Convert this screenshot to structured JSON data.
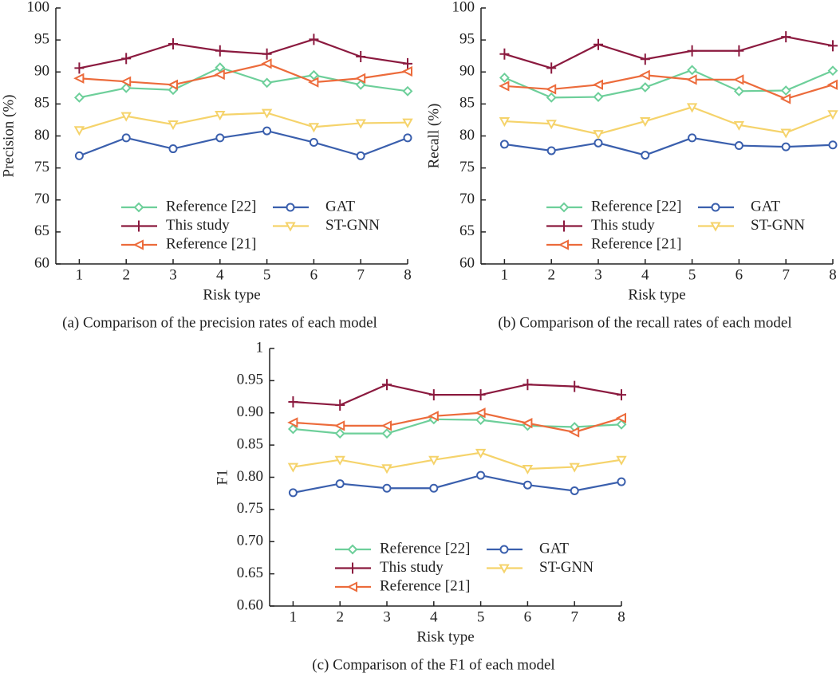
{
  "chart_data": [
    {
      "type": "line",
      "xlabel": "Risk type",
      "ylabel": "Precision (%)",
      "caption": "(a) Comparison of the precision rates of each model",
      "x": [
        1,
        2,
        3,
        4,
        5,
        6,
        7,
        8
      ],
      "xlim": [
        0.5,
        8
      ],
      "xticks": [
        1,
        2,
        3,
        4,
        5,
        6,
        7,
        8
      ],
      "ylim": [
        60,
        100
      ],
      "yticks": [
        60,
        65,
        70,
        75,
        80,
        85,
        90,
        95,
        100
      ],
      "legend": "lower left",
      "series": [
        {
          "name": "Reference [22]",
          "color": "#6dcf9a",
          "marker": "diamond",
          "values": [
            86,
            87.5,
            87.2,
            90.7,
            88.3,
            89.5,
            88,
            87
          ]
        },
        {
          "name": "This study",
          "color": "#8b1a3f",
          "marker": "plus",
          "values": [
            90.6,
            92.1,
            94.4,
            93.3,
            92.8,
            95.1,
            92.4,
            91.3
          ]
        },
        {
          "name": "Reference [21]",
          "color": "#ec6b3b",
          "marker": "triangle-left",
          "values": [
            89,
            88.5,
            88,
            89.6,
            91.3,
            88.4,
            89,
            90.1
          ]
        },
        {
          "name": "GAT",
          "color": "#3a5fad",
          "marker": "circle",
          "values": [
            76.9,
            79.7,
            78,
            79.7,
            80.8,
            79,
            76.9,
            79.7
          ]
        },
        {
          "name": "ST-GNN",
          "color": "#f5d36b",
          "marker": "triangle-down",
          "values": [
            80.9,
            83.1,
            81.8,
            83.3,
            83.6,
            81.4,
            82,
            82.1
          ]
        }
      ]
    },
    {
      "type": "line",
      "xlabel": "Risk type",
      "ylabel": "Recall (%)",
      "caption": "(b) Comparison of the recall rates of each model",
      "x": [
        1,
        2,
        3,
        4,
        5,
        6,
        7,
        8
      ],
      "xlim": [
        0.5,
        8
      ],
      "xticks": [
        1,
        2,
        3,
        4,
        5,
        6,
        7,
        8
      ],
      "ylim": [
        60,
        100
      ],
      "yticks": [
        60,
        65,
        70,
        75,
        80,
        85,
        90,
        95,
        100
      ],
      "legend": "lower left",
      "series": [
        {
          "name": "Reference [22]",
          "color": "#6dcf9a",
          "marker": "diamond",
          "values": [
            89.1,
            86,
            86.1,
            87.6,
            90.3,
            87,
            87.1,
            90.2
          ]
        },
        {
          "name": "This study",
          "color": "#8b1a3f",
          "marker": "plus",
          "values": [
            92.8,
            90.6,
            94.3,
            92,
            93.3,
            93.3,
            95.5,
            94.1
          ]
        },
        {
          "name": "Reference [21]",
          "color": "#ec6b3b",
          "marker": "triangle-left",
          "values": [
            87.8,
            87.3,
            88,
            89.5,
            88.8,
            88.8,
            85.8,
            88
          ]
        },
        {
          "name": "GAT",
          "color": "#3a5fad",
          "marker": "circle",
          "values": [
            78.7,
            77.7,
            78.9,
            77,
            79.7,
            78.5,
            78.3,
            78.6
          ]
        },
        {
          "name": "ST-GNN",
          "color": "#f5d36b",
          "marker": "triangle-down",
          "values": [
            82.3,
            81.9,
            80.3,
            82.3,
            84.5,
            81.7,
            80.5,
            83.4
          ]
        }
      ]
    },
    {
      "type": "line",
      "xlabel": "Risk type",
      "ylabel": "F1",
      "caption": "(c) Comparison of the F1 of each model",
      "x": [
        1,
        2,
        3,
        4,
        5,
        6,
        7,
        8
      ],
      "xlim": [
        0.5,
        8
      ],
      "xticks": [
        1,
        2,
        3,
        4,
        5,
        6,
        7,
        8
      ],
      "ylim": [
        0.6,
        1
      ],
      "yticks": [
        {
          "value": 0.6,
          "label": "0.60"
        },
        0.65,
        {
          "value": 0.7,
          "label": "0.70"
        },
        0.75,
        {
          "value": 0.8,
          "label": "0.80"
        },
        0.85,
        {
          "value": 0.9,
          "label": "0.90"
        },
        0.95,
        1
      ],
      "legend": "lower left",
      "series": [
        {
          "name": "Reference [22]",
          "color": "#6dcf9a",
          "marker": "diamond",
          "values": [
            0.875,
            0.868,
            0.868,
            0.89,
            0.889,
            0.88,
            0.878,
            0.882
          ]
        },
        {
          "name": "This study",
          "color": "#8b1a3f",
          "marker": "plus",
          "values": [
            0.917,
            0.912,
            0.944,
            0.928,
            0.928,
            0.944,
            0.941,
            0.928
          ]
        },
        {
          "name": "Reference [21]",
          "color": "#ec6b3b",
          "marker": "triangle-left",
          "values": [
            0.885,
            0.88,
            0.88,
            0.895,
            0.9,
            0.884,
            0.87,
            0.892
          ]
        },
        {
          "name": "GAT",
          "color": "#3a5fad",
          "marker": "circle",
          "values": [
            0.776,
            0.79,
            0.783,
            0.783,
            0.803,
            0.788,
            0.779,
            0.793
          ]
        },
        {
          "name": "ST-GNN",
          "color": "#f5d36b",
          "marker": "triangle-down",
          "values": [
            0.816,
            0.827,
            0.814,
            0.827,
            0.838,
            0.813,
            0.816,
            0.827
          ]
        }
      ]
    }
  ]
}
